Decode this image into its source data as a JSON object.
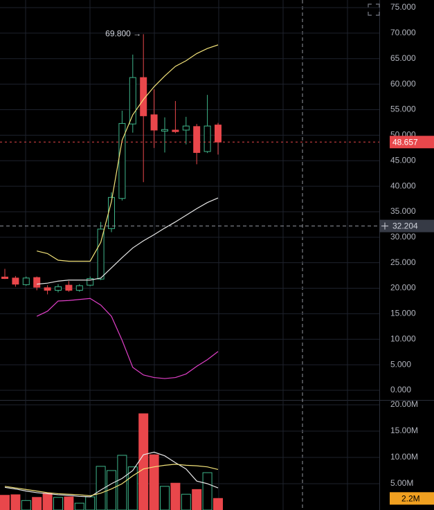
{
  "chart_data": [
    {
      "type": "candlestick",
      "open": [
        22.2,
        22,
        20.7,
        22.1,
        20.1,
        19.6,
        20.6,
        19.6,
        20.6,
        21.8,
        31.7,
        37.6,
        52.2,
        61.3,
        54,
        50.8,
        51,
        51,
        51.7,
        46.8,
        52
      ],
      "high": [
        23.8,
        22.4,
        22.3,
        22.3,
        20.6,
        20.8,
        21.4,
        20.8,
        22.3,
        33,
        38.8,
        54.8,
        65.8,
        69.8,
        59,
        53.5,
        56.7,
        53.6,
        52.2,
        57.9,
        52.4
      ],
      "low": [
        21.8,
        20.3,
        20.5,
        19.6,
        18.8,
        19.2,
        19.3,
        19.3,
        20.4,
        21.6,
        31,
        37.2,
        50.5,
        40.8,
        47.5,
        46.6,
        50.4,
        48.2,
        44.3,
        46.5,
        46.2
      ],
      "close": [
        21.9,
        20.8,
        22,
        20.2,
        19.6,
        20.3,
        19.6,
        20.5,
        21.9,
        31.6,
        37.8,
        52.3,
        61.3,
        53.8,
        51,
        51.1,
        50.7,
        51.8,
        46.6,
        51.8,
        48.657
      ],
      "up_color": "#3fb68b",
      "down_color": "#e9474b",
      "series": [
        {
          "color": "#f3e37a",
          "values": [
            null,
            null,
            null,
            27.3,
            26.8,
            25.5,
            25.3,
            25.3,
            25.3,
            29,
            37,
            49,
            54,
            57,
            59.5,
            61.6,
            63.5,
            64.6,
            66,
            67,
            67.7
          ]
        },
        {
          "color": "#e8e8e8",
          "values": [
            null,
            null,
            null,
            20.8,
            21,
            21.4,
            21.6,
            21.6,
            21.6,
            22,
            24,
            26,
            27.9,
            29.3,
            30.5,
            31.8,
            33,
            34.3,
            35.6,
            36.8,
            37.7
          ]
        },
        {
          "color": "#e040c8",
          "values": [
            null,
            null,
            null,
            14.5,
            15.5,
            17.5,
            17.6,
            17.8,
            18,
            16.7,
            14.5,
            9.8,
            4.5,
            3,
            2.5,
            2.3,
            2.5,
            3.2,
            4.7,
            6,
            7.6
          ]
        }
      ],
      "ylim": [
        -1.9,
        76.5
      ],
      "yticks": [
        {
          "value": 0,
          "label": "0.000"
        },
        {
          "value": 5,
          "label": "5.000"
        },
        {
          "value": 10,
          "label": "10.000"
        },
        {
          "value": 15,
          "label": "15.000"
        },
        {
          "value": 20,
          "label": "20.000"
        },
        {
          "value": 25,
          "label": "25.000"
        },
        {
          "value": 30,
          "label": "30.000"
        },
        {
          "value": 35,
          "label": "35.000"
        },
        {
          "value": 40,
          "label": "40.000"
        },
        {
          "value": 45,
          "label": "45.000"
        },
        {
          "value": 50,
          "label": "50.000"
        },
        {
          "value": 55,
          "label": "55.000"
        },
        {
          "value": 60,
          "label": "60.000"
        },
        {
          "value": 65,
          "label": "65.000"
        },
        {
          "value": 70,
          "label": "70.000"
        },
        {
          "value": 75,
          "label": "75.000"
        }
      ],
      "last_price": 48.657,
      "last_price_color": "#e9474b",
      "crosshair_price": 32.204,
      "annotation": {
        "value": 69.8,
        "label": "69.800 →"
      },
      "grid": true
    },
    {
      "type": "bar",
      "values": [
        2.8,
        2.9,
        1.8,
        2.4,
        3.2,
        2.4,
        2.5,
        1.3,
        2.5,
        8.3,
        7.5,
        10.4,
        8.2,
        18.3,
        10.5,
        4.5,
        5.1,
        3,
        3.9,
        7.1,
        2.2
      ],
      "colors": [
        "#e9474b",
        "#e9474b",
        "#3fb68b",
        "#e9474b",
        "#e9474b",
        "#3fb68b",
        "#e9474b",
        "#3fb68b",
        "#3fb68b",
        "#3fb68b",
        "#3fb68b",
        "#3fb68b",
        "#3fb68b",
        "#e9474b",
        "#e9474b",
        "#3fb68b",
        "#e9474b",
        "#3fb68b",
        "#e9474b",
        "#3fb68b",
        "#e9474b"
      ],
      "series": [
        {
          "color": "#e8e8e8",
          "values": [
            4.3,
            4.0,
            3.6,
            3.3,
            3.1,
            2.9,
            2.8,
            2.6,
            2.5,
            3.8,
            5,
            6,
            7.5,
            10.5,
            11,
            10.3,
            9,
            7.8,
            5.5,
            5,
            4.2
          ]
        },
        {
          "color": "#f3e37a",
          "values": [
            4.5,
            4.2,
            3.9,
            3.6,
            3.3,
            3.1,
            3,
            2.9,
            2.7,
            3.2,
            4,
            5,
            6.5,
            7.8,
            8.2,
            8.5,
            8.7,
            8.5,
            8.4,
            8.2,
            7.7
          ]
        }
      ],
      "ylim": [
        0,
        20.92
      ],
      "yticks": [
        {
          "value": 5,
          "label": "5.00M"
        },
        {
          "value": 10,
          "label": "10.00M"
        },
        {
          "value": 15,
          "label": "15.00M"
        },
        {
          "value": 20,
          "label": "20.00M"
        }
      ],
      "last_value": {
        "value": 2.2,
        "label": "2.2M"
      },
      "last_value_color": "#f0a020",
      "grid": true
    }
  ]
}
